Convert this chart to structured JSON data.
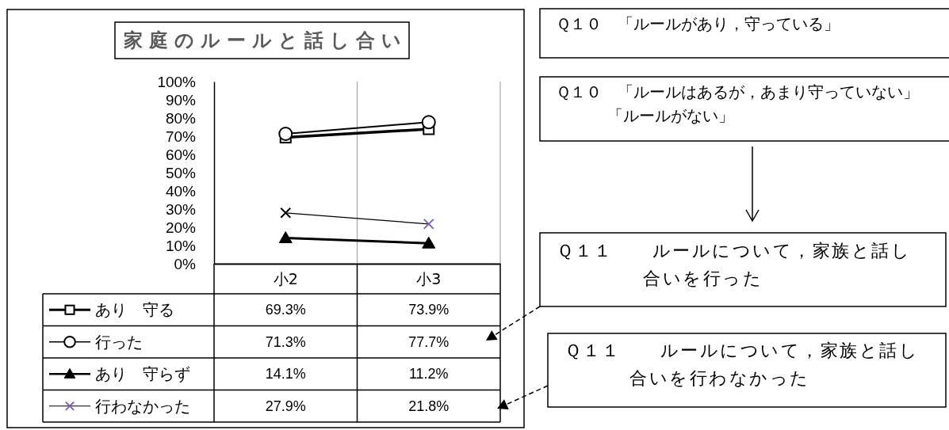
{
  "chart_data": {
    "type": "line",
    "title": "家庭のルールと話し合い",
    "categories": [
      "小2",
      "小3"
    ],
    "series": [
      {
        "name": "あり　守る",
        "color": "#000000",
        "marker": "square",
        "values": [
          69.3,
          73.9
        ],
        "value_labels": [
          "69.3%",
          "73.9%"
        ]
      },
      {
        "name": "行った",
        "color": "#000000",
        "marker": "circle",
        "values": [
          71.3,
          77.7
        ],
        "value_labels": [
          "71.3%",
          "77.7%"
        ]
      },
      {
        "name": "あり　守らず",
        "color": "#000000",
        "marker": "triangle",
        "values": [
          14.1,
          11.2
        ],
        "value_labels": [
          "14.1%",
          "11.2%"
        ]
      },
      {
        "name": "行わなかった",
        "color": "#000000",
        "colors": [
          "#000000",
          "#7e62ae"
        ],
        "marker": "cross",
        "values": [
          27.9,
          21.8
        ],
        "value_labels": [
          "27.9%",
          "21.8%"
        ]
      }
    ],
    "ylim": [
      0,
      100
    ],
    "yticks": [
      {
        "value": 0,
        "label": "0%"
      },
      {
        "value": 10,
        "label": "10%"
      },
      {
        "value": 20,
        "label": "20%"
      },
      {
        "value": 30,
        "label": "30%"
      },
      {
        "value": 40,
        "label": "40%"
      },
      {
        "value": 50,
        "label": "50%"
      },
      {
        "value": 60,
        "label": "60%"
      },
      {
        "value": 70,
        "label": "70%"
      },
      {
        "value": 80,
        "label": "80%"
      },
      {
        "value": 90,
        "label": "90%"
      },
      {
        "value": 100,
        "label": "100%"
      }
    ],
    "grid": "x",
    "legend": "bottom",
    "annotations": [
      "Ｑ１０　「ルールがあり，守っている」",
      "Ｑ１０　「ルールはあるが，あまり守っていない」「ルールがない」",
      "Ｑ１１　　ルールについて，家族と話し合いを行った",
      "Ｑ１１　　ルールについて，家族と話し合いを行わなかった"
    ]
  }
}
